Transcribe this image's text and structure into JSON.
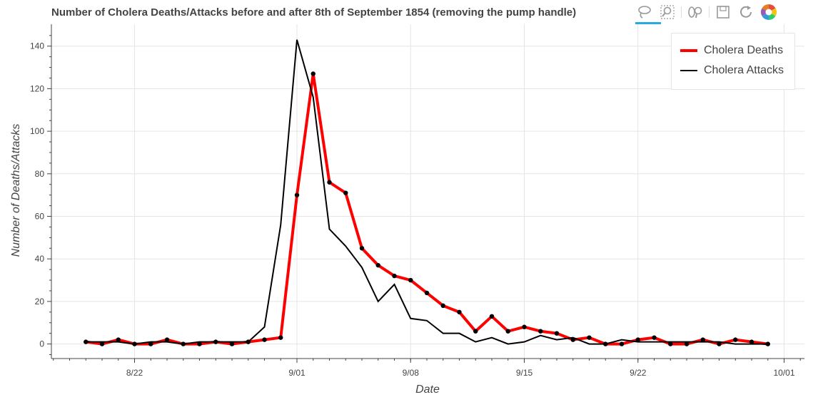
{
  "title": "Number of Cholera Deaths/Attacks before and after 8th of September 1854 (removing the pump handle)",
  "toolbar": {
    "tools": [
      {
        "name": "lasso-select-icon",
        "active": true
      },
      {
        "name": "box-zoom-icon",
        "active": false
      },
      {
        "name": "wheel-zoom-icon",
        "active": false
      },
      {
        "name": "save-icon",
        "active": false
      },
      {
        "name": "reset-icon",
        "active": false
      },
      {
        "name": "bokeh-logo-icon",
        "active": false
      }
    ]
  },
  "legend": {
    "placement": "top-right",
    "entries": [
      "Cholera Deaths",
      "Cholera Attacks"
    ]
  },
  "colors": {
    "deaths": "#ff0000",
    "attacks": "#000000",
    "points": "#000000",
    "grid": "#e5e5e5",
    "axis": "#444444"
  },
  "chart_data": {
    "type": "line",
    "title": "Number of Cholera Deaths/Attacks before and after 8th of September 1854 (removing the pump handle)",
    "xlabel": "Date",
    "ylabel": "Number of Deaths/Attacks",
    "x_start": "1854-08-19",
    "x": [
      "1854-08-19",
      "1854-08-20",
      "1854-08-21",
      "1854-08-22",
      "1854-08-23",
      "1854-08-24",
      "1854-08-25",
      "1854-08-26",
      "1854-08-27",
      "1854-08-28",
      "1854-08-29",
      "1854-08-30",
      "1854-08-31",
      "1854-09-01",
      "1854-09-02",
      "1854-09-03",
      "1854-09-04",
      "1854-09-05",
      "1854-09-06",
      "1854-09-07",
      "1854-09-08",
      "1854-09-09",
      "1854-09-10",
      "1854-09-11",
      "1854-09-12",
      "1854-09-13",
      "1854-09-14",
      "1854-09-15",
      "1854-09-16",
      "1854-09-17",
      "1854-09-18",
      "1854-09-19",
      "1854-09-20",
      "1854-09-21",
      "1854-09-22",
      "1854-09-23",
      "1854-09-24",
      "1854-09-25",
      "1854-09-26",
      "1854-09-27",
      "1854-09-28",
      "1854-09-29",
      "1854-09-30"
    ],
    "xtick_labels": [
      "8/22",
      "9/01",
      "9/08",
      "9/15",
      "9/22",
      "10/01"
    ],
    "xtick_dates": [
      "1854-08-22",
      "1854-09-01",
      "1854-09-08",
      "1854-09-15",
      "1854-09-22",
      "1854-10-01"
    ],
    "yticks": [
      0,
      20,
      40,
      60,
      80,
      100,
      120,
      140
    ],
    "xlim": [
      "1854-08-17",
      "1854-10-02"
    ],
    "ylim": [
      -7,
      150
    ],
    "grid": true,
    "legend": "top-right",
    "series": [
      {
        "name": "Cholera Deaths",
        "markers": true,
        "values": [
          1,
          0,
          2,
          0,
          0,
          2,
          0,
          0,
          1,
          0,
          1,
          2,
          3,
          70,
          127,
          76,
          71,
          45,
          37,
          32,
          30,
          24,
          18,
          15,
          6,
          13,
          6,
          8,
          6,
          5,
          2,
          3,
          0,
          0,
          2,
          3,
          0,
          0,
          2,
          0,
          2,
          1,
          0
        ]
      },
      {
        "name": "Cholera Attacks",
        "markers": false,
        "values": [
          1,
          1,
          1,
          0,
          1,
          1,
          0,
          1,
          1,
          1,
          1,
          8,
          56,
          143,
          116,
          54,
          46,
          36,
          20,
          28,
          12,
          11,
          5,
          5,
          1,
          3,
          0,
          1,
          4,
          2,
          3,
          0,
          0,
          2,
          1,
          1,
          1,
          1,
          1,
          1,
          0,
          0,
          0
        ]
      }
    ]
  }
}
